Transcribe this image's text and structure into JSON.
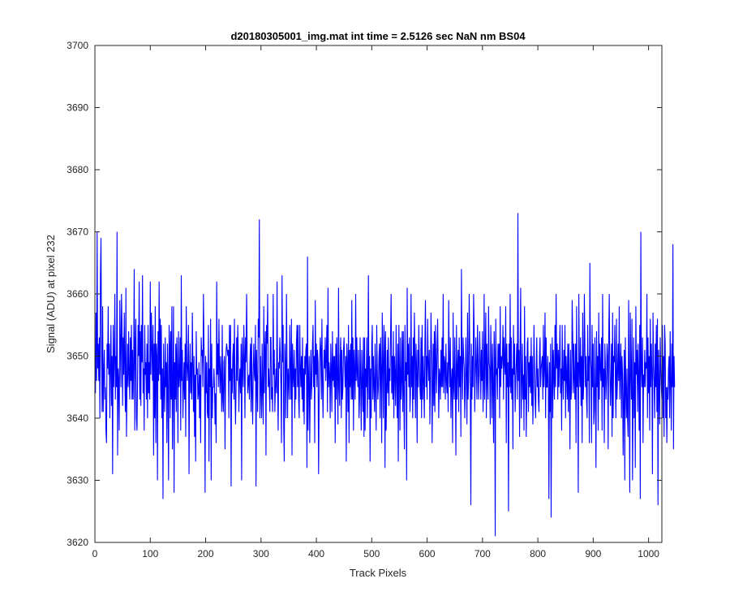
{
  "chart_data": {
    "type": "line",
    "title": "d20180305001_img.mat int time = 2.5126 sec  NaN nm BS04",
    "xlabel": "Track Pixels",
    "ylabel": "Signal (ADU) at pixel 232",
    "xlim": [
      0,
      1024
    ],
    "ylim": [
      3620,
      3700
    ],
    "xticks": [
      0,
      100,
      200,
      300,
      400,
      500,
      600,
      700,
      800,
      900,
      1000
    ],
    "yticks": [
      3620,
      3630,
      3640,
      3650,
      3660,
      3670,
      3680,
      3690,
      3700
    ],
    "grid": false,
    "legend": "none",
    "series": [
      {
        "color": "#0000ff",
        "x_start": 1,
        "x_step": 1,
        "values": [
          3644,
          3657,
          3646,
          3670,
          3648,
          3652,
          3646,
          3653,
          3640,
          3663,
          3669,
          3650,
          3641,
          3658,
          3641,
          3647,
          3651,
          3643,
          3645,
          3638,
          3636,
          3652,
          3648,
          3658,
          3647,
          3652,
          3640,
          3648,
          3655,
          3642,
          3650,
          3631,
          3655,
          3645,
          3649,
          3660,
          3643,
          3650,
          3645,
          3670,
          3634,
          3648,
          3646,
          3638,
          3659,
          3652,
          3645,
          3660,
          3655,
          3642,
          3653,
          3647,
          3657,
          3648,
          3641,
          3661,
          3637,
          3645,
          3652,
          3645,
          3654,
          3647,
          3643,
          3653,
          3646,
          3655,
          3643,
          3651,
          3643,
          3649,
          3664,
          3638,
          3652,
          3656,
          3640,
          3638,
          3646,
          3655,
          3650,
          3662,
          3643,
          3654,
          3642,
          3655,
          3649,
          3663,
          3644,
          3648,
          3638,
          3655,
          3647,
          3649,
          3643,
          3652,
          3640,
          3655,
          3644,
          3649,
          3643,
          3662,
          3647,
          3657,
          3651,
          3646,
          3655,
          3634,
          3652,
          3640,
          3658,
          3636,
          3652,
          3650,
          3630,
          3654,
          3646,
          3662,
          3647,
          3656,
          3643,
          3655,
          3640,
          3648,
          3627,
          3652,
          3645,
          3641,
          3653,
          3645,
          3649,
          3636,
          3652,
          3645,
          3630,
          3655,
          3652,
          3640,
          3654,
          3643,
          3658,
          3635,
          3646,
          3658,
          3628,
          3649,
          3643,
          3652,
          3641,
          3653,
          3648,
          3636,
          3654,
          3645,
          3647,
          3653,
          3638,
          3663,
          3646,
          3651,
          3640,
          3645,
          3649,
          3643,
          3652,
          3637,
          3658,
          3649,
          3646,
          3649,
          3655,
          3631,
          3647,
          3652,
          3644,
          3649,
          3643,
          3657,
          3649,
          3641,
          3650,
          3637,
          3647,
          3633,
          3654,
          3647,
          3648,
          3643,
          3644,
          3649,
          3640,
          3647,
          3636,
          3653,
          3650,
          3651,
          3645,
          3660,
          3652,
          3647,
          3628,
          3650,
          3644,
          3649,
          3641,
          3640,
          3655,
          3633,
          3648,
          3645,
          3656,
          3630,
          3652,
          3640,
          3645,
          3645,
          3648,
          3645,
          3639,
          3644,
          3636,
          3662,
          3647,
          3652,
          3645,
          3656,
          3648,
          3644,
          3650,
          3646,
          3641,
          3655,
          3643,
          3641,
          3649,
          3650,
          3635,
          3647,
          3651,
          3652,
          3651,
          3650,
          3651,
          3640,
          3655,
          3646,
          3655,
          3629,
          3648,
          3644,
          3650,
          3652,
          3643,
          3656,
          3645,
          3639,
          3645,
          3653,
          3646,
          3655,
          3650,
          3641,
          3646,
          3648,
          3644,
          3652,
          3630,
          3653,
          3648,
          3645,
          3655,
          3650,
          3640,
          3653,
          3649,
          3660,
          3651,
          3644,
          3646,
          3647,
          3643,
          3649,
          3652,
          3641,
          3653,
          3644,
          3639,
          3648,
          3652,
          3647,
          3646,
          3655,
          3629,
          3651,
          3645,
          3641,
          3656,
          3653,
          3672,
          3640,
          3650,
          3645,
          3640,
          3652,
          3644,
          3639,
          3658,
          3644,
          3651,
          3654,
          3634,
          3655,
          3652,
          3660,
          3645,
          3648,
          3645,
          3641,
          3653,
          3653,
          3643,
          3645,
          3641,
          3660,
          3647,
          3651,
          3641,
          3645,
          3648,
          3644,
          3662,
          3645,
          3638,
          3649,
          3648,
          3653,
          3650,
          3645,
          3636,
          3663,
          3649,
          3655,
          3639,
          3633,
          3652,
          3648,
          3640,
          3660,
          3649,
          3640,
          3648,
          3646,
          3643,
          3655,
          3648,
          3643,
          3656,
          3634,
          3652,
          3647,
          3645,
          3651,
          3640,
          3648,
          3643,
          3652,
          3655,
          3645,
          3655,
          3643,
          3640,
          3655,
          3648,
          3645,
          3650,
          3643,
          3653,
          3641,
          3648,
          3639,
          3650,
          3647,
          3651,
          3652,
          3632,
          3666,
          3638,
          3646,
          3650,
          3636,
          3645,
          3651,
          3643,
          3646,
          3652,
          3655,
          3645,
          3650,
          3636,
          3659,
          3647,
          3652,
          3645,
          3651,
          3649,
          3631,
          3643,
          3649,
          3653,
          3651,
          3643,
          3656,
          3646,
          3640,
          3647,
          3651,
          3648,
          3653,
          3646,
          3650,
          3655,
          3641,
          3661,
          3645,
          3649,
          3647,
          3640,
          3652,
          3648,
          3641,
          3654,
          3646,
          3650,
          3645,
          3650,
          3636,
          3652,
          3643,
          3653,
          3646,
          3639,
          3661,
          3645,
          3642,
          3650,
          3653,
          3640,
          3651,
          3643,
          3645,
          3651,
          3653,
          3649,
          3645,
          3650,
          3633,
          3652,
          3649,
          3641,
          3655,
          3636,
          3651,
          3645,
          3652,
          3643,
          3659,
          3643,
          3653,
          3638,
          3651,
          3647,
          3643,
          3660,
          3646,
          3653,
          3647,
          3645,
          3651,
          3640,
          3643,
          3653,
          3646,
          3638,
          3651,
          3646,
          3641,
          3653,
          3637,
          3653,
          3638,
          3648,
          3645,
          3653,
          3640,
          3647,
          3663,
          3643,
          3650,
          3633,
          3648,
          3640,
          3652,
          3655,
          3643,
          3650,
          3645,
          3641,
          3652,
          3645,
          3638,
          3655,
          3648,
          3643,
          3645,
          3650,
          3652,
          3640,
          3653,
          3648,
          3636,
          3657,
          3649,
          3640,
          3655,
          3652,
          3632,
          3654,
          3638,
          3644,
          3651,
          3644,
          3653,
          3642,
          3648,
          3646,
          3653,
          3660,
          3644,
          3650,
          3643,
          3654,
          3640,
          3650,
          3647,
          3642,
          3655,
          3646,
          3640,
          3652,
          3633,
          3655,
          3648,
          3638,
          3653,
          3643,
          3646,
          3654,
          3641,
          3654,
          3643,
          3635,
          3655,
          3646,
          3649,
          3630,
          3661,
          3647,
          3652,
          3645,
          3653,
          3641,
          3644,
          3660,
          3645,
          3650,
          3640,
          3653,
          3643,
          3657,
          3650,
          3640,
          3652,
          3648,
          3636,
          3651,
          3645,
          3655,
          3649,
          3645,
          3643,
          3653,
          3640,
          3655,
          3643,
          3650,
          3646,
          3640,
          3652,
          3659,
          3645,
          3650,
          3643,
          3656,
          3649,
          3646,
          3651,
          3639,
          3646,
          3657,
          3651,
          3636,
          3645,
          3652,
          3642,
          3654,
          3641,
          3655,
          3649,
          3644,
          3651,
          3656,
          3648,
          3640,
          3648,
          3647,
          3643,
          3651,
          3645,
          3653,
          3645,
          3660,
          3644,
          3650,
          3649,
          3643,
          3652,
          3646,
          3644,
          3649,
          3641,
          3659,
          3649,
          3645,
          3653,
          3640,
          3646,
          3648,
          3636,
          3657,
          3645,
          3643,
          3653,
          3646,
          3634,
          3655,
          3643,
          3648,
          3651,
          3641,
          3653,
          3645,
          3650,
          3637,
          3664,
          3649,
          3643,
          3653,
          3650,
          3648,
          3640,
          3645,
          3653,
          3646,
          3639,
          3657,
          3643,
          3646,
          3660,
          3652,
          3645,
          3626,
          3652,
          3643,
          3650,
          3645,
          3660,
          3654,
          3641,
          3647,
          3653,
          3648,
          3643,
          3655,
          3650,
          3643,
          3647,
          3654,
          3649,
          3643,
          3651,
          3646,
          3654,
          3641,
          3645,
          3660,
          3643,
          3650,
          3657,
          3640,
          3652,
          3646,
          3643,
          3658,
          3649,
          3648,
          3639,
          3655,
          3649,
          3640,
          3652,
          3645,
          3636,
          3654,
          3650,
          3621,
          3656,
          3647,
          3648,
          3643,
          3652,
          3648,
          3652,
          3640,
          3658,
          3645,
          3650,
          3648,
          3650,
          3655,
          3643,
          3653,
          3649,
          3647,
          3658,
          3636,
          3652,
          3645,
          3649,
          3625,
          3652,
          3645,
          3660,
          3644,
          3653,
          3643,
          3648,
          3635,
          3655,
          3647,
          3652,
          3641,
          3646,
          3649,
          3652,
          3643,
          3673,
          3646,
          3651,
          3637,
          3652,
          3661,
          3640,
          3646,
          3652,
          3643,
          3647,
          3638,
          3658,
          3643,
          3650,
          3637,
          3644,
          3652,
          3653,
          3641,
          3649,
          3645,
          3650,
          3644,
          3653,
          3642,
          3650,
          3639,
          3644,
          3655,
          3648,
          3643,
          3640,
          3647,
          3653,
          3645,
          3648,
          3643,
          3641,
          3650,
          3653,
          3645,
          3648,
          3649,
          3650,
          3643,
          3655,
          3645,
          3648,
          3657,
          3640,
          3653,
          3645,
          3645,
          3650,
          3645,
          3627,
          3649,
          3641,
          3652,
          3624,
          3645,
          3653,
          3640,
          3651,
          3647,
          3643,
          3655,
          3645,
          3660,
          3648,
          3652,
          3643,
          3651,
          3645,
          3650,
          3655,
          3644,
          3648,
          3638,
          3655,
          3647,
          3643,
          3651,
          3646,
          3655,
          3640,
          3650,
          3647,
          3643,
          3652,
          3641,
          3652,
          3645,
          3635,
          3651,
          3643,
          3645,
          3659,
          3653,
          3644,
          3652,
          3646,
          3643,
          3652,
          3636,
          3658,
          3645,
          3649,
          3628,
          3660,
          3648,
          3645,
          3653,
          3642,
          3650,
          3636,
          3657,
          3643,
          3646,
          3660,
          3652,
          3645,
          3650,
          3643,
          3640,
          3655,
          3646,
          3650,
          3636,
          3665,
          3650,
          3648,
          3636,
          3655,
          3645,
          3652,
          3639,
          3641,
          3653,
          3644,
          3632,
          3654,
          3645,
          3650,
          3638,
          3657,
          3643,
          3652,
          3648,
          3646,
          3653,
          3638,
          3660,
          3645,
          3648,
          3636,
          3652,
          3648,
          3643,
          3646,
          3652,
          3650,
          3635,
          3653,
          3660,
          3648,
          3642,
          3646,
          3652,
          3637,
          3657,
          3640,
          3650,
          3649,
          3655,
          3646,
          3640,
          3656,
          3643,
          3647,
          3652,
          3646,
          3658,
          3643,
          3648,
          3652,
          3640,
          3650,
          3647,
          3634,
          3643,
          3651,
          3630,
          3653,
          3645,
          3640,
          3648,
          3640,
          3637,
          3659,
          3646,
          3628,
          3657,
          3648,
          3643,
          3656,
          3630,
          3643,
          3653,
          3640,
          3649,
          3632,
          3658,
          3647,
          3651,
          3641,
          3652,
          3647,
          3638,
          3655,
          3627,
          3670,
          3648,
          3645,
          3653,
          3636,
          3647,
          3645,
          3651,
          3645,
          3649,
          3648,
          3660,
          3640,
          3653,
          3644,
          3650,
          3638,
          3656,
          3645,
          3652,
          3647,
          3631,
          3657,
          3649,
          3646,
          3640,
          3652,
          3645,
          3655,
          3641,
          3656,
          3626,
          3651,
          3645,
          3639,
          3653,
          3648,
          3645,
          3643,
          3655,
          3640,
          3650,
          3637,
          3655,
          3652,
          3640,
          3645,
          3636,
          3645,
          3643,
          3648,
          3650,
          3640,
          3654,
          3646,
          3638,
          3652,
          3645,
          3668,
          3635,
          3650,
          3645
        ]
      }
    ]
  }
}
